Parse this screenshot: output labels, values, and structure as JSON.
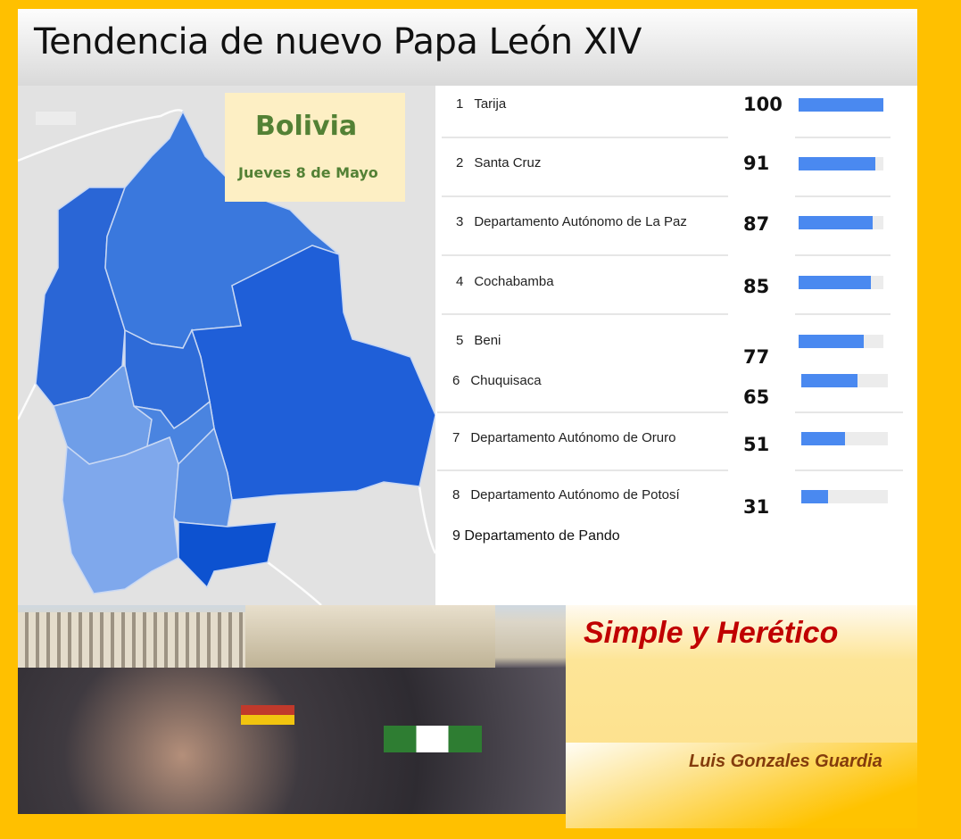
{
  "header": {
    "title": "Tendencia de nuevo Papa León XIV"
  },
  "map": {
    "country": "Bolivia",
    "date": "Jueves 8 de Mayo"
  },
  "ranking": [
    {
      "rank": "1",
      "name": "Tarija",
      "value": 100
    },
    {
      "rank": "2",
      "name": "Santa Cruz",
      "value": 91
    },
    {
      "rank": "3",
      "name": "Departamento Autónomo de La Paz",
      "value": 87
    },
    {
      "rank": "4",
      "name": "Cochabamba",
      "value": 85
    },
    {
      "rank": "5",
      "name": "Beni",
      "value": 77
    },
    {
      "rank": "6",
      "name": "Chuquisaca",
      "value": 65
    },
    {
      "rank": "7",
      "name": "Departamento Autónomo de Oruro",
      "value": 51
    },
    {
      "rank": "8",
      "name": "Departamento Autónomo de Potosí",
      "value": 31
    }
  ],
  "extra_item": "9 Departamento de Pando",
  "brand": {
    "title": "Simple y Herético",
    "author": "Luis Gonzales Guardia"
  },
  "colors": {
    "background": "#FFC000",
    "bar": "#4a89f0",
    "bar_track": "#ececec",
    "green_text": "#538135",
    "brand_red": "#c00000",
    "author_brown": "#843c0c"
  }
}
